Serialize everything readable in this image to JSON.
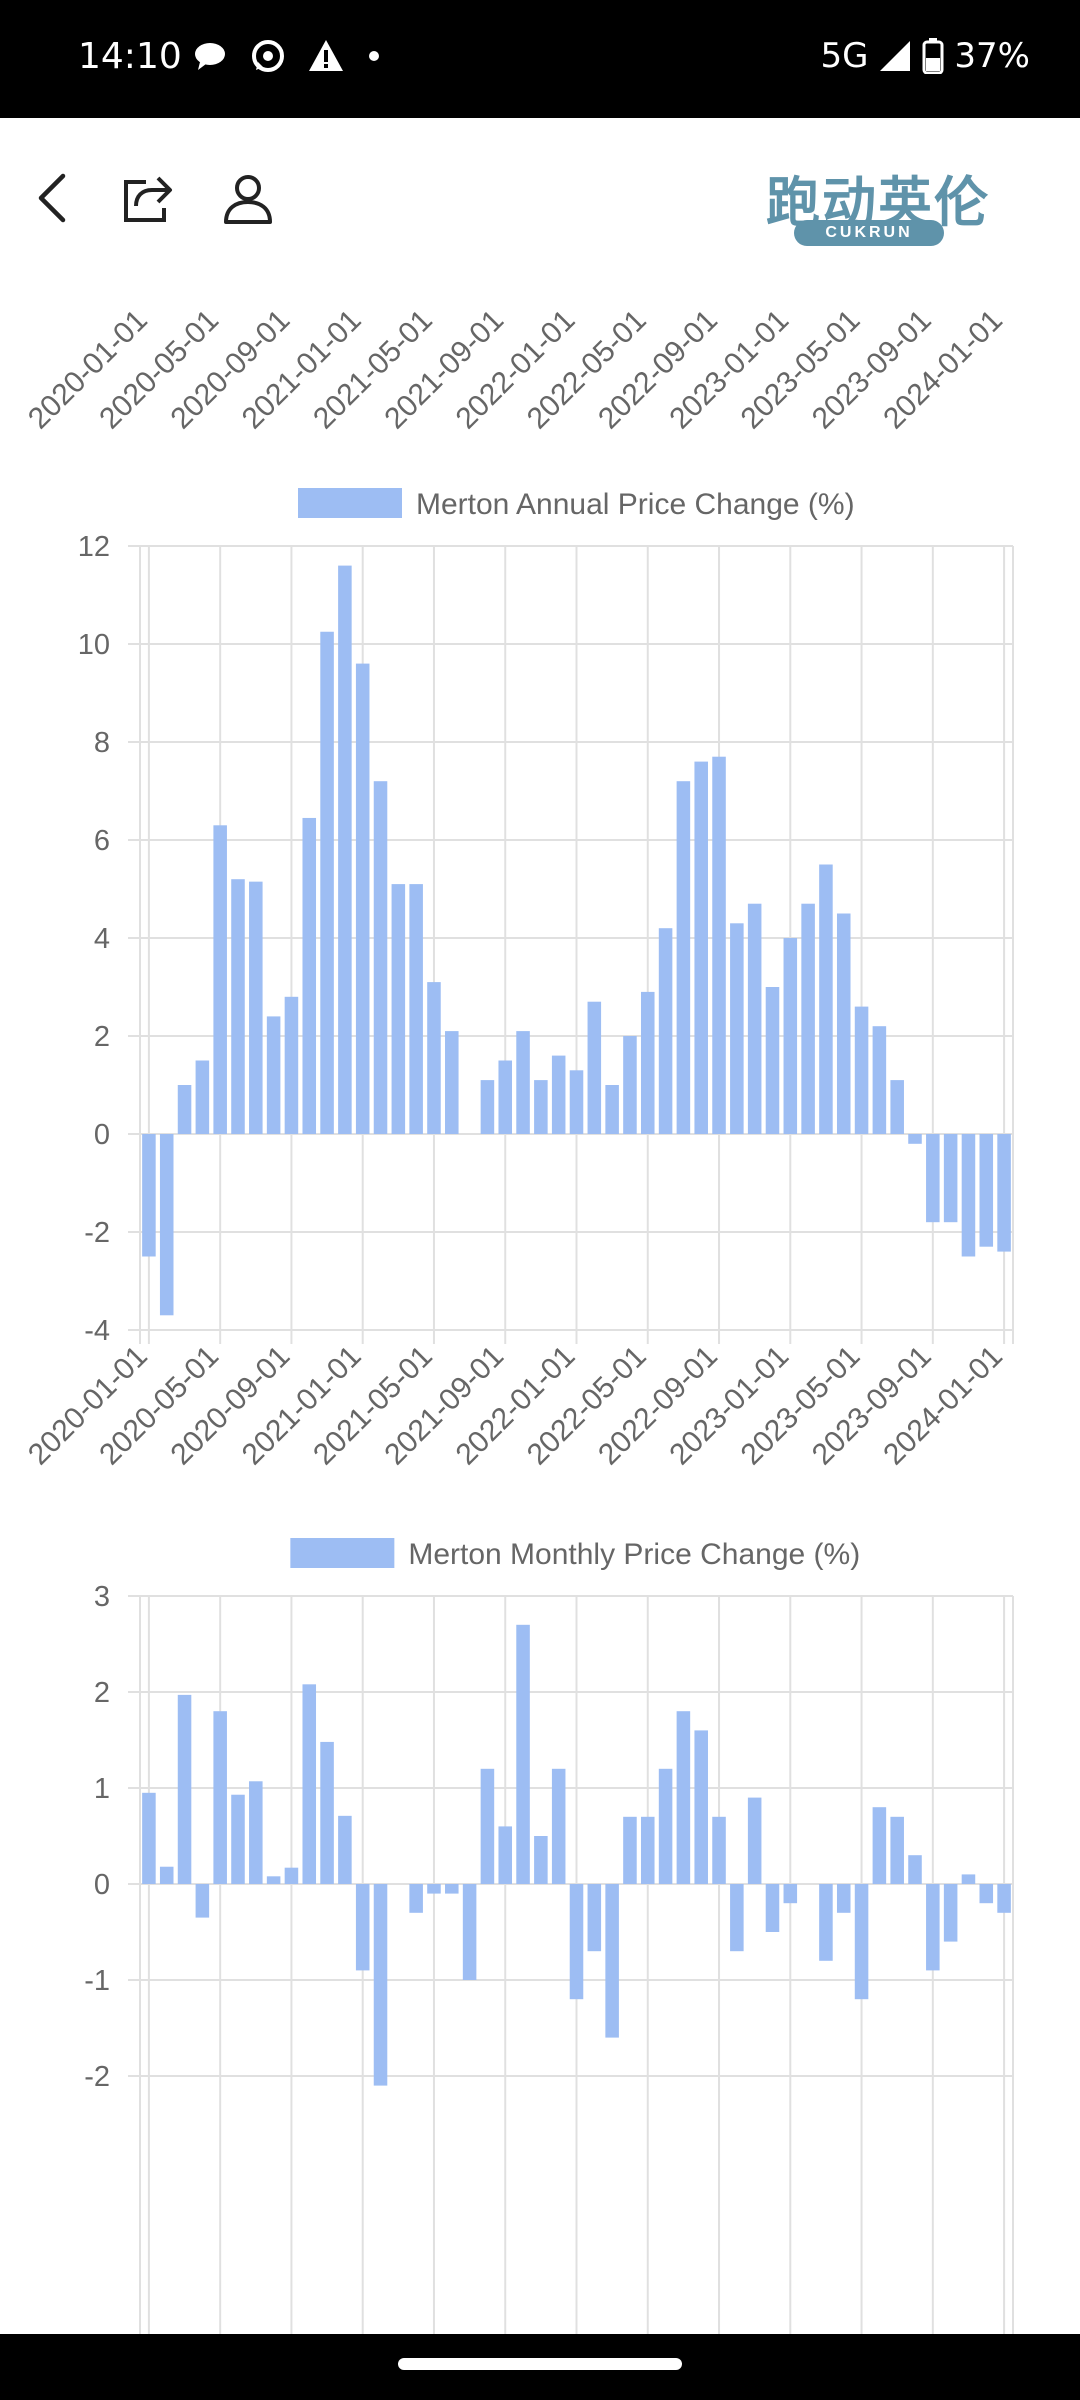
{
  "status_bar": {
    "time": "14:10",
    "network": "5G",
    "battery": "37%",
    "icons": [
      "chat-bubble-icon",
      "whatsapp-icon",
      "warning-icon",
      "dot-icon"
    ]
  },
  "app_bar": {
    "logo_text": "跑动英伦",
    "logo_sub": "CUKRUN",
    "icons": [
      "back-icon",
      "share-icon",
      "account-icon"
    ]
  },
  "x_ticks": [
    "2020-01-01",
    "2020-05-01",
    "2020-09-01",
    "2021-01-01",
    "2021-05-01",
    "2021-09-01",
    "2022-01-01",
    "2022-05-01",
    "2022-09-01",
    "2023-01-01",
    "2023-05-01",
    "2023-09-01",
    "2024-01-01"
  ],
  "colors": {
    "bar": "#9dbdf3",
    "grid": "#e0e0e0",
    "axis_text": "#666666"
  },
  "chart_data": [
    {
      "type": "bar",
      "legend": "Merton Annual Price Change (%)",
      "ylim": [
        -4,
        12
      ],
      "yticks": [
        12,
        10,
        8,
        6,
        4,
        2,
        0,
        -2,
        -4
      ],
      "grid": true,
      "legend_position": "top",
      "months_start": "2020-01",
      "values": [
        -2.5,
        -3.7,
        1.0,
        1.5,
        6.3,
        5.2,
        5.15,
        2.4,
        2.8,
        6.45,
        10.25,
        11.6,
        9.6,
        7.2,
        5.1,
        5.1,
        3.1,
        2.1,
        0,
        1.1,
        1.5,
        2.1,
        1.1,
        1.6,
        1.3,
        2.7,
        1.0,
        2.0,
        2.9,
        4.2,
        7.2,
        7.6,
        7.7,
        4.3,
        4.7,
        3.0,
        4.0,
        4.7,
        5.5,
        4.5,
        2.6,
        2.2,
        1.1,
        -0.2,
        -1.8,
        -1.8,
        -2.5,
        -2.3,
        -2.4
      ]
    },
    {
      "type": "bar",
      "legend": "Merton Monthly Price Change (%)",
      "ylim": [
        -2.6,
        3
      ],
      "yticks": [
        3,
        2,
        1,
        0,
        -1,
        -2
      ],
      "grid": true,
      "legend_position": "top",
      "months_start": "2020-01",
      "values": [
        0.95,
        0.18,
        1.97,
        -0.35,
        1.8,
        0.93,
        1.07,
        0.08,
        0.17,
        2.08,
        1.48,
        0.71,
        -0.9,
        -2.1,
        0,
        -0.3,
        -0.1,
        -0.1,
        -1.0,
        1.2,
        0.6,
        2.7,
        0.5,
        1.2,
        -1.2,
        -0.7,
        -1.6,
        0.7,
        0.7,
        1.2,
        1.8,
        1.6,
        0.7,
        -0.7,
        0.9,
        -0.5,
        -0.2,
        0,
        -0.8,
        -0.3,
        -1.2,
        0.8,
        0.7,
        0.3,
        -0.9,
        -0.6,
        0.1,
        -0.2,
        -0.3
      ]
    }
  ]
}
